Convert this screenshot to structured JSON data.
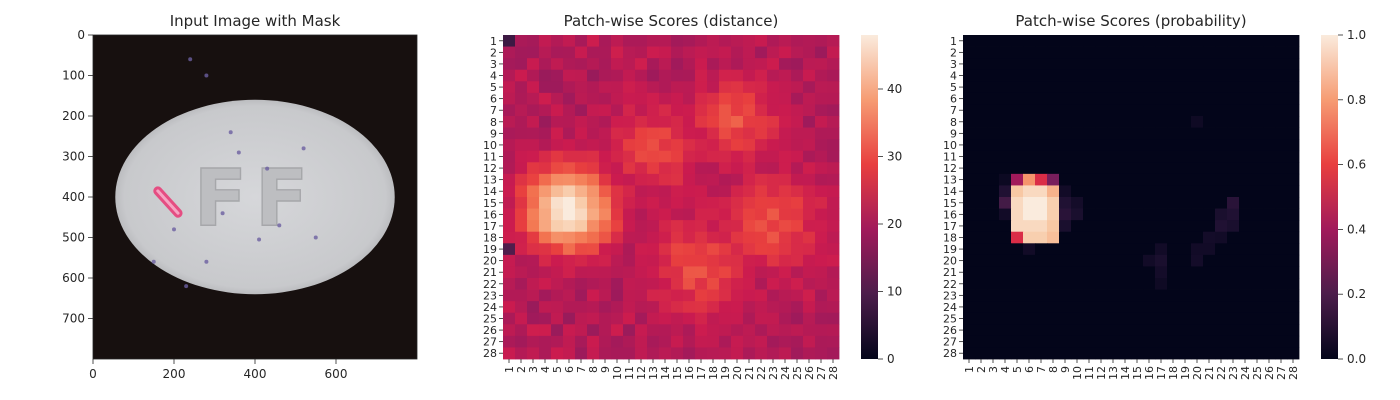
{
  "chart_data": [
    {
      "type": "image",
      "title": "Input Image with Mask",
      "x_ticks": [
        0,
        200,
        400,
        600
      ],
      "y_ticks": [
        0,
        100,
        200,
        300,
        400,
        500,
        600,
        700
      ],
      "xlim": [
        0,
        800
      ],
      "ylim": [
        800,
        0
      ],
      "image": {
        "background_color": "#17100f",
        "pill": {
          "center": [
            400,
            400
          ],
          "rx": 345,
          "ry": 240,
          "color": "#c9cacd"
        },
        "embossed_text": "FF",
        "mask_color": "#e8407a",
        "mask_stroke": {
          "from": [
            160,
            385
          ],
          "to": [
            210,
            440
          ]
        },
        "specks": [
          [
            240,
            60
          ],
          [
            280,
            100
          ],
          [
            340,
            240
          ],
          [
            360,
            290
          ],
          [
            320,
            440
          ],
          [
            410,
            505
          ],
          [
            460,
            470
          ],
          [
            280,
            560
          ],
          [
            230,
            620
          ],
          [
            150,
            560
          ],
          [
            520,
            280
          ],
          [
            550,
            500
          ],
          [
            430,
            330
          ],
          [
            200,
            480
          ]
        ]
      }
    },
    {
      "type": "heatmap",
      "title": "Patch-wise Scores (distance)",
      "x_ticks": [
        "1",
        "2",
        "3",
        "4",
        "5",
        "6",
        "7",
        "8",
        "9",
        "10",
        "11",
        "12",
        "13",
        "14",
        "15",
        "16",
        "17",
        "18",
        "19",
        "20",
        "21",
        "22",
        "23",
        "24",
        "25",
        "26",
        "27",
        "28"
      ],
      "y_ticks": [
        "1",
        "2",
        "3",
        "4",
        "5",
        "6",
        "7",
        "8",
        "9",
        "10",
        "11",
        "12",
        "13",
        "14",
        "15",
        "16",
        "17",
        "18",
        "19",
        "20",
        "21",
        "22",
        "23",
        "24",
        "25",
        "26",
        "27",
        "28"
      ],
      "colorbar": {
        "range": [
          0,
          48
        ],
        "ticks": [
          0,
          10,
          20,
          30,
          40
        ]
      },
      "grid": {
        "rows": 28,
        "cols": 28,
        "base": 20
      },
      "hotspots": [
        {
          "row": 15.5,
          "col": 6.0,
          "peak": 48,
          "radius": 2.6
        },
        {
          "row": 20.5,
          "col": 17.0,
          "peak": 30,
          "radius": 3.2
        },
        {
          "row": 16.5,
          "col": 23.0,
          "peak": 30,
          "radius": 3.2
        },
        {
          "row": 8.0,
          "col": 20.0,
          "peak": 30,
          "radius": 2.8
        },
        {
          "row": 10.5,
          "col": 13.0,
          "peak": 29,
          "radius": 3.0
        }
      ]
    },
    {
      "type": "heatmap",
      "title": "Patch-wise Scores (probability)",
      "x_ticks": [
        "1",
        "2",
        "3",
        "4",
        "5",
        "6",
        "7",
        "8",
        "9",
        "10",
        "11",
        "12",
        "13",
        "14",
        "15",
        "16",
        "17",
        "18",
        "19",
        "20",
        "21",
        "22",
        "23",
        "24",
        "25",
        "26",
        "27",
        "28"
      ],
      "y_ticks": [
        "1",
        "2",
        "3",
        "4",
        "5",
        "6",
        "7",
        "8",
        "9",
        "10",
        "11",
        "12",
        "13",
        "14",
        "15",
        "16",
        "17",
        "18",
        "19",
        "20",
        "21",
        "22",
        "23",
        "24",
        "25",
        "26",
        "27",
        "28"
      ],
      "colorbar": {
        "range": [
          0,
          1
        ],
        "ticks": [
          "0.0",
          "0.2",
          "0.4",
          "0.6",
          "0.8",
          "1.0"
        ]
      },
      "grid": {
        "rows": 28,
        "cols": 28,
        "base": 0
      },
      "cells": [
        [
          15,
          6,
          1.0
        ],
        [
          15,
          7,
          1.0
        ],
        [
          16,
          6,
          1.0
        ],
        [
          16,
          7,
          1.0
        ],
        [
          15,
          5,
          0.95
        ],
        [
          16,
          5,
          0.95
        ],
        [
          17,
          5,
          0.95
        ],
        [
          17,
          6,
          0.95
        ],
        [
          17,
          7,
          0.95
        ],
        [
          15,
          8,
          0.92
        ],
        [
          16,
          8,
          0.92
        ],
        [
          17,
          8,
          0.9
        ],
        [
          14,
          6,
          0.95
        ],
        [
          14,
          7,
          0.95
        ],
        [
          14,
          5,
          0.9
        ],
        [
          14,
          8,
          0.85
        ],
        [
          18,
          6,
          0.92
        ],
        [
          18,
          7,
          0.92
        ],
        [
          18,
          8,
          0.88
        ],
        [
          18,
          5,
          0.55
        ],
        [
          13,
          5,
          0.4
        ],
        [
          13,
          6,
          0.78
        ],
        [
          13,
          7,
          0.55
        ],
        [
          13,
          8,
          0.3
        ],
        [
          14,
          4,
          0.1
        ],
        [
          15,
          4,
          0.18
        ],
        [
          16,
          4,
          0.05
        ],
        [
          14,
          9,
          0.05
        ],
        [
          15,
          9,
          0.1
        ],
        [
          16,
          9,
          0.12
        ],
        [
          17,
          9,
          0.08
        ],
        [
          16,
          10,
          0.08
        ],
        [
          15,
          10,
          0.06
        ],
        [
          19,
          6,
          0.05
        ],
        [
          13,
          4,
          0.03
        ],
        [
          15,
          23,
          0.12
        ],
        [
          16,
          23,
          0.1
        ],
        [
          16,
          22,
          0.08
        ],
        [
          17,
          22,
          0.1
        ],
        [
          17,
          23,
          0.08
        ],
        [
          18,
          21,
          0.06
        ],
        [
          18,
          22,
          0.05
        ],
        [
          19,
          20,
          0.05
        ],
        [
          19,
          21,
          0.05
        ],
        [
          20,
          20,
          0.06
        ],
        [
          19,
          17,
          0.05
        ],
        [
          20,
          17,
          0.08
        ],
        [
          21,
          17,
          0.06
        ],
        [
          20,
          16,
          0.05
        ],
        [
          22,
          17,
          0.04
        ],
        [
          8,
          20,
          0.04
        ]
      ]
    }
  ]
}
